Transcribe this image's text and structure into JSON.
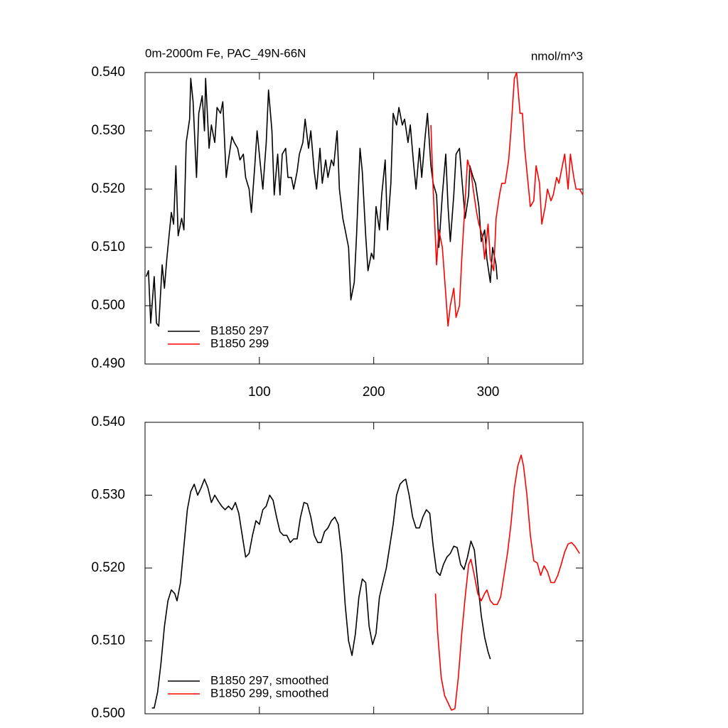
{
  "chart_data": [
    {
      "type": "line",
      "title": "0m-2000m Fe, PAC_49N-66N",
      "units": "nmol/m^3",
      "xlim": [
        0,
        383
      ],
      "xticks": [
        100,
        200,
        300
      ],
      "ylim": [
        0.49,
        0.54
      ],
      "yticks": [
        {
          "value": 0.49,
          "label": "0.490"
        },
        {
          "value": 0.5,
          "label": "0.500"
        },
        {
          "value": 0.51,
          "label": "0.510"
        },
        {
          "value": 0.52,
          "label": "0.520"
        },
        {
          "value": 0.53,
          "label": "0.530"
        },
        {
          "value": 0.54,
          "label": "0.540"
        }
      ],
      "legend_position": "lower left",
      "series": [
        {
          "name": "B1850 297",
          "color": "#000000",
          "x": [
            1,
            3,
            5,
            8,
            10,
            12,
            15,
            17,
            19,
            21,
            23,
            25,
            27,
            28,
            29,
            32,
            34,
            36,
            39,
            40,
            42,
            45,
            47,
            50,
            52,
            53,
            56,
            58,
            61,
            63,
            66,
            68,
            71,
            73,
            76,
            78,
            81,
            83,
            86,
            88,
            91,
            93,
            96,
            98,
            101,
            103,
            106,
            108,
            111,
            113,
            116,
            118,
            120,
            123,
            125,
            128,
            130,
            133,
            135,
            138,
            140,
            143,
            145,
            148,
            150,
            153,
            155,
            158,
            160,
            163,
            165,
            168,
            170,
            173,
            175,
            178,
            180,
            183,
            185,
            188,
            190,
            193,
            195,
            198,
            200,
            202,
            205,
            207,
            210,
            212,
            215,
            217,
            220,
            222,
            225,
            227,
            230,
            232,
            235,
            237,
            240,
            242,
            245,
            247,
            250,
            252,
            255,
            257,
            260,
            263,
            265,
            267,
            270,
            272,
            275,
            277,
            280,
            283,
            284,
            287,
            289,
            292,
            294,
            297,
            299,
            302,
            304,
            307,
            308
          ],
          "values": [
            0.505,
            0.506,
            0.497,
            0.505,
            0.497,
            0.4965,
            0.507,
            0.503,
            0.508,
            0.512,
            0.516,
            0.514,
            0.524,
            0.518,
            0.512,
            0.515,
            0.513,
            0.528,
            0.532,
            0.539,
            0.535,
            0.522,
            0.533,
            0.536,
            0.53,
            0.539,
            0.527,
            0.531,
            0.528,
            0.534,
            0.533,
            0.535,
            0.522,
            0.525,
            0.529,
            0.528,
            0.527,
            0.525,
            0.526,
            0.522,
            0.52,
            0.516,
            0.524,
            0.53,
            0.524,
            0.52,
            0.528,
            0.537,
            0.53,
            0.519,
            0.526,
            0.519,
            0.526,
            0.527,
            0.522,
            0.522,
            0.52,
            0.523,
            0.526,
            0.528,
            0.532,
            0.527,
            0.53,
            0.523,
            0.52,
            0.527,
            0.521,
            0.525,
            0.522,
            0.525,
            0.524,
            0.53,
            0.52,
            0.515,
            0.513,
            0.51,
            0.501,
            0.504,
            0.512,
            0.527,
            0.523,
            0.512,
            0.506,
            0.509,
            0.508,
            0.517,
            0.513,
            0.519,
            0.525,
            0.513,
            0.521,
            0.533,
            0.531,
            0.534,
            0.531,
            0.532,
            0.528,
            0.531,
            0.524,
            0.52,
            0.527,
            0.522,
            0.529,
            0.533,
            0.524,
            0.521,
            0.519,
            0.51,
            0.519,
            0.526,
            0.517,
            0.511,
            0.519,
            0.526,
            0.527,
            0.522,
            0.515,
            0.519,
            0.524,
            0.522,
            0.521,
            0.517,
            0.511,
            0.513,
            0.508,
            0.504,
            0.51,
            0.507,
            0.5045
          ]
        },
        {
          "name": "B1850 299",
          "color": "#ff0000",
          "x": [
            250,
            252,
            255,
            257,
            260,
            263,
            265,
            267,
            270,
            272,
            275,
            277,
            280,
            282,
            285,
            287,
            290,
            292,
            295,
            297,
            300,
            302,
            305,
            307,
            310,
            312,
            315,
            318,
            320,
            323,
            325,
            328,
            330,
            332,
            335,
            337,
            340,
            342,
            345,
            347,
            350,
            352,
            355,
            357,
            360,
            362,
            365,
            367,
            370,
            372,
            375,
            377,
            380,
            383
          ],
          "values": [
            0.531,
            0.52,
            0.507,
            0.513,
            0.51,
            0.502,
            0.4965,
            0.5,
            0.503,
            0.498,
            0.5,
            0.508,
            0.518,
            0.525,
            0.523,
            0.52,
            0.516,
            0.514,
            0.512,
            0.508,
            0.514,
            0.508,
            0.506,
            0.515,
            0.519,
            0.521,
            0.521,
            0.525,
            0.53,
            0.539,
            0.54,
            0.533,
            0.533,
            0.527,
            0.521,
            0.517,
            0.518,
            0.524,
            0.521,
            0.514,
            0.517,
            0.52,
            0.518,
            0.519,
            0.522,
            0.521,
            0.524,
            0.526,
            0.52,
            0.526,
            0.522,
            0.52,
            0.52,
            0.519
          ]
        }
      ]
    },
    {
      "type": "line",
      "xlim": [
        0,
        383
      ],
      "xticks": [
        100,
        200,
        300
      ],
      "ylim": [
        0.5,
        0.54
      ],
      "yticks": [
        {
          "value": 0.5,
          "label": "0.500"
        },
        {
          "value": 0.51,
          "label": "0.510"
        },
        {
          "value": 0.52,
          "label": "0.520"
        },
        {
          "value": 0.53,
          "label": "0.530"
        },
        {
          "value": 0.54,
          "label": "0.540"
        }
      ],
      "legend_position": "lower left",
      "series": [
        {
          "name": "B1850 297, smoothed",
          "color": "#000000",
          "x": [
            6,
            8,
            11,
            14,
            17,
            20,
            23,
            26,
            28,
            31,
            34,
            37,
            40,
            43,
            46,
            49,
            52,
            55,
            58,
            61,
            64,
            67,
            70,
            73,
            76,
            79,
            82,
            85,
            88,
            91,
            94,
            97,
            100,
            103,
            106,
            109,
            112,
            115,
            118,
            121,
            124,
            127,
            130,
            133,
            136,
            139,
            142,
            145,
            148,
            151,
            154,
            157,
            160,
            163,
            166,
            169,
            172,
            175,
            178,
            181,
            184,
            187,
            190,
            193,
            196,
            199,
            202,
            205,
            208,
            211,
            214,
            217,
            220,
            223,
            226,
            228,
            231,
            234,
            237,
            240,
            243,
            246,
            249,
            252,
            255,
            258,
            261,
            264,
            267,
            270,
            273,
            276,
            279,
            282,
            285,
            288,
            291,
            294,
            297,
            300,
            302
          ],
          "values": [
            0.5008,
            0.5008,
            0.503,
            0.507,
            0.512,
            0.5155,
            0.517,
            0.5165,
            0.5155,
            0.518,
            0.523,
            0.528,
            0.5305,
            0.5315,
            0.53,
            0.531,
            0.5322,
            0.531,
            0.529,
            0.53,
            0.5292,
            0.5285,
            0.528,
            0.5285,
            0.528,
            0.529,
            0.5275,
            0.5245,
            0.5215,
            0.522,
            0.5245,
            0.5265,
            0.526,
            0.528,
            0.5285,
            0.53,
            0.5293,
            0.527,
            0.525,
            0.5245,
            0.5245,
            0.5235,
            0.524,
            0.524,
            0.527,
            0.529,
            0.5288,
            0.527,
            0.5245,
            0.5235,
            0.5235,
            0.525,
            0.5255,
            0.5265,
            0.527,
            0.526,
            0.522,
            0.515,
            0.51,
            0.508,
            0.511,
            0.516,
            0.5185,
            0.518,
            0.512,
            0.5095,
            0.511,
            0.516,
            0.518,
            0.52,
            0.523,
            0.526,
            0.53,
            0.5315,
            0.532,
            0.5322,
            0.53,
            0.527,
            0.5255,
            0.5255,
            0.527,
            0.528,
            0.5275,
            0.523,
            0.5195,
            0.519,
            0.5205,
            0.5215,
            0.522,
            0.523,
            0.5228,
            0.5205,
            0.5198,
            0.5215,
            0.5237,
            0.5225,
            0.518,
            0.5135,
            0.5105,
            0.5085,
            0.5075
          ]
        },
        {
          "name": "B1850 299, smoothed",
          "color": "#ff0000",
          "x": [
            254,
            256,
            259,
            262,
            265,
            268,
            271,
            274,
            277,
            280,
            283,
            285,
            288,
            291,
            294,
            297,
            299,
            302,
            305,
            308,
            311,
            314,
            317,
            320,
            323,
            326,
            329,
            331,
            334,
            337,
            340,
            343,
            346,
            349,
            352,
            355,
            358,
            361,
            364,
            367,
            370,
            373,
            376,
            378,
            380
          ],
          "values": [
            0.5165,
            0.511,
            0.505,
            0.5025,
            0.5015,
            0.5005,
            0.5007,
            0.505,
            0.511,
            0.516,
            0.5205,
            0.5212,
            0.519,
            0.5165,
            0.5155,
            0.5165,
            0.517,
            0.5155,
            0.515,
            0.515,
            0.516,
            0.519,
            0.522,
            0.526,
            0.531,
            0.534,
            0.5355,
            0.534,
            0.53,
            0.5245,
            0.521,
            0.5207,
            0.519,
            0.5203,
            0.5195,
            0.518,
            0.518,
            0.519,
            0.5205,
            0.5222,
            0.5233,
            0.5235,
            0.523,
            0.5225,
            0.522
          ]
        }
      ]
    }
  ]
}
